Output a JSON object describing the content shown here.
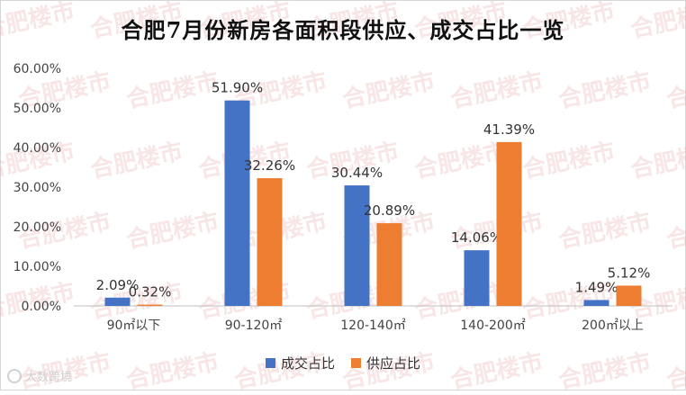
{
  "title": "合肥7月份新房各面积段供应、成交占比一览",
  "watermark": "合肥楼市",
  "credit": "大数跨境",
  "chart_data": {
    "type": "bar",
    "categories": [
      "90㎡以下",
      "90-120㎡",
      "120-140㎡",
      "140-200㎡",
      "200㎡以上"
    ],
    "series": [
      {
        "name": "成交占比",
        "color": "#4472c4",
        "values": [
          2.09,
          51.9,
          30.44,
          14.06,
          1.49
        ],
        "labels": [
          "2.09%",
          "51.90%",
          "30.44%",
          "14.06%",
          "1.49%"
        ]
      },
      {
        "name": "供应占比",
        "color": "#ed7d31",
        "values": [
          0.32,
          32.26,
          20.89,
          41.39,
          5.12
        ],
        "labels": [
          "0.32%",
          "32.26%",
          "20.89%",
          "41.39%",
          "5.12%"
        ]
      }
    ],
    "ylim": [
      0,
      60
    ],
    "yticks": [
      "0.00%",
      "10.00%",
      "20.00%",
      "30.00%",
      "40.00%",
      "50.00%",
      "60.00%"
    ],
    "ytick_values": [
      0,
      10,
      20,
      30,
      40,
      50,
      60
    ],
    "grid": false,
    "legend_position": "bottom-center"
  }
}
